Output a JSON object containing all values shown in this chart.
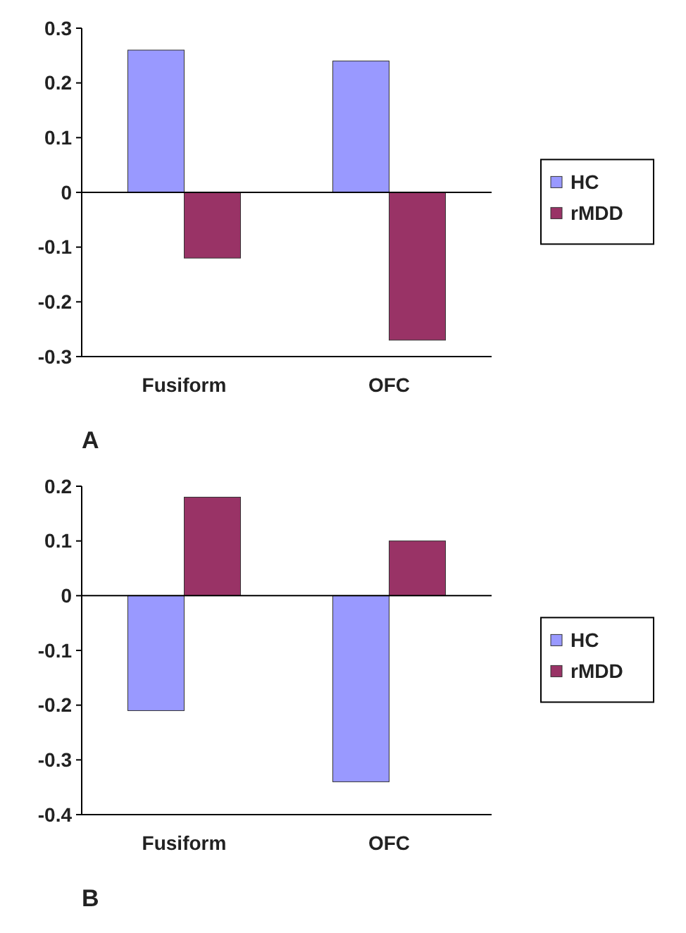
{
  "chart_data": [
    {
      "type": "bar",
      "title": "A",
      "categories": [
        "Fusiform",
        "OFC"
      ],
      "series": [
        {
          "name": "HC",
          "color": "#9999ff",
          "values": [
            0.26,
            0.24
          ]
        },
        {
          "name": "rMDD",
          "color": "#993366",
          "values": [
            -0.12,
            -0.27
          ]
        }
      ],
      "ylim": [
        -0.3,
        0.3
      ],
      "yticks": [
        {
          "value": -0.3,
          "label": "-0.3"
        },
        {
          "value": -0.2,
          "label": "-0.2"
        },
        {
          "value": -0.1,
          "label": "-0.1"
        },
        0,
        0.1,
        0.2,
        0.3
      ],
      "legend": "right"
    },
    {
      "type": "bar",
      "title": "B",
      "categories": [
        "Fusiform",
        "OFC"
      ],
      "series": [
        {
          "name": "HC",
          "color": "#9999ff",
          "values": [
            -0.21,
            -0.34
          ]
        },
        {
          "name": "rMDD",
          "color": "#993366",
          "values": [
            0.18,
            0.1
          ]
        }
      ],
      "ylim": [
        -0.4,
        0.2
      ],
      "yticks": [
        {
          "value": -0.4,
          "label": "-0.4"
        },
        {
          "value": -0.3,
          "label": "-0.3"
        },
        {
          "value": -0.2,
          "label": "-0.2"
        },
        {
          "value": -0.1,
          "label": "-0.1"
        },
        0,
        0.1,
        0.2
      ],
      "legend": "right"
    }
  ]
}
